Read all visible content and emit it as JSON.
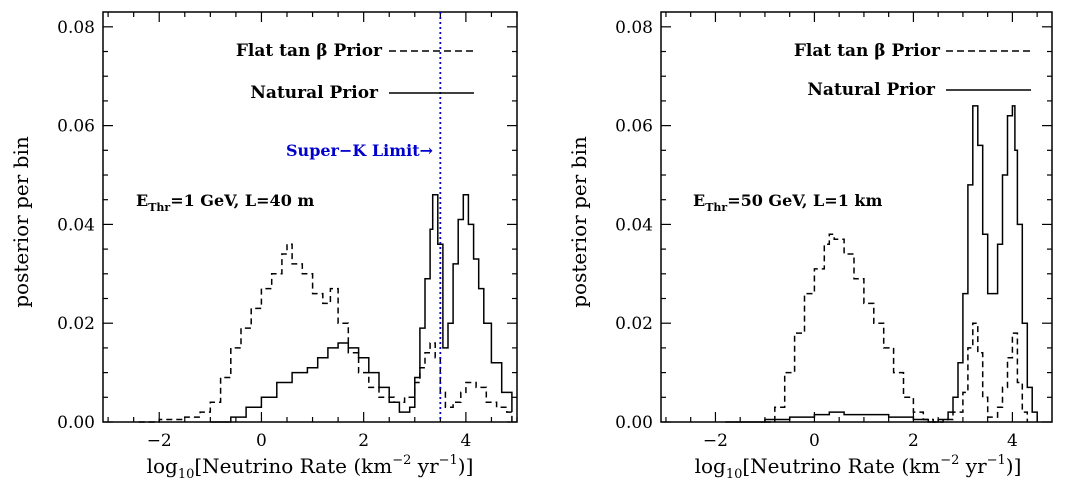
{
  "chart_data": [
    {
      "type": "line",
      "ylabel": "posterior per bin",
      "xlabel_main": "log",
      "xlabel_sub": "10",
      "xlabel_rest": "[Neutrino Rate (km",
      "xlabel_exp1": "−2",
      "xlabel_mid": " yr",
      "xlabel_exp2": "−1",
      "xlabel_end": ")]",
      "xlim": [
        -3.1,
        5.0
      ],
      "ylim": [
        0,
        0.083
      ],
      "xticks": [
        -2,
        0,
        2,
        4
      ],
      "xtick_labels": [
        "−2",
        "0",
        "2",
        "4"
      ],
      "yticks": [
        0,
        0.02,
        0.04,
        0.06,
        0.08
      ],
      "ytick_labels": [
        "0.00",
        "0.02",
        "0.04",
        "0.06",
        "0.08"
      ],
      "annotation": {
        "main": "E",
        "sub": "Thr",
        "rest": "=1 GeV, L=40 m"
      },
      "limit_line": {
        "label": "Super−K Limit→",
        "x": 3.5,
        "color": "#0000cc"
      },
      "series": [
        {
          "name": "Flat tan β Prior",
          "style": "dashed",
          "x": [
            -2.4,
            -2.0,
            -1.5,
            -1.2,
            -1.0,
            -0.8,
            -0.6,
            -0.4,
            -0.2,
            0.0,
            0.2,
            0.4,
            0.5,
            0.6,
            0.8,
            1.0,
            1.2,
            1.35,
            1.5,
            1.7,
            1.9,
            2.1,
            2.3,
            2.6,
            2.8,
            3.0,
            3.1,
            3.2,
            3.3,
            3.4,
            3.5,
            3.6,
            3.75,
            3.9,
            4.0,
            4.2,
            4.4,
            4.6,
            4.8,
            4.9
          ],
          "values": [
            0.0,
            0.0005,
            0.001,
            0.002,
            0.004,
            0.009,
            0.015,
            0.019,
            0.023,
            0.027,
            0.03,
            0.034,
            0.036,
            0.032,
            0.03,
            0.026,
            0.024,
            0.027,
            0.02,
            0.014,
            0.01,
            0.007,
            0.005,
            0.004,
            0.005,
            0.008,
            0.011,
            0.014,
            0.016,
            0.013,
            0.006,
            0.003,
            0.004,
            0.006,
            0.008,
            0.007,
            0.004,
            0.003,
            0.002,
            0.0
          ]
        },
        {
          "name": "Natural Prior",
          "style": "solid",
          "x": [
            -1.0,
            -0.6,
            -0.3,
            0.0,
            0.3,
            0.6,
            0.9,
            1.1,
            1.3,
            1.5,
            1.7,
            1.9,
            2.1,
            2.3,
            2.5,
            2.7,
            2.9,
            3.0,
            3.1,
            3.2,
            3.3,
            3.35,
            3.45,
            3.55,
            3.65,
            3.75,
            3.85,
            3.95,
            4.05,
            4.15,
            4.25,
            4.35,
            4.5,
            4.7,
            4.9
          ],
          "values": [
            0.0,
            0.001,
            0.003,
            0.005,
            0.008,
            0.01,
            0.011,
            0.013,
            0.015,
            0.016,
            0.015,
            0.013,
            0.01,
            0.007,
            0.004,
            0.002,
            0.003,
            0.009,
            0.019,
            0.029,
            0.039,
            0.046,
            0.036,
            0.015,
            0.02,
            0.032,
            0.041,
            0.046,
            0.04,
            0.033,
            0.027,
            0.02,
            0.012,
            0.006,
            0.002
          ]
        }
      ]
    },
    {
      "type": "line",
      "ylabel": "posterior per bin",
      "xlabel_main": "log",
      "xlabel_sub": "10",
      "xlabel_rest": "[Neutrino Rate (km",
      "xlabel_exp1": "−2",
      "xlabel_mid": " yr",
      "xlabel_exp2": "−1",
      "xlabel_end": ")]",
      "xlim": [
        -3.1,
        4.8
      ],
      "ylim": [
        0,
        0.083
      ],
      "xticks": [
        -2,
        0,
        2,
        4
      ],
      "xtick_labels": [
        "−2",
        "0",
        "2",
        "4"
      ],
      "yticks": [
        0,
        0.02,
        0.04,
        0.06,
        0.08
      ],
      "ytick_labels": [
        "0.00",
        "0.02",
        "0.04",
        "0.06",
        "0.08"
      ],
      "annotation": {
        "main": "E",
        "sub": "Thr",
        "rest": "=50 GeV, L=1 km"
      },
      "series": [
        {
          "name": "Flat tan β Prior",
          "style": "dashed",
          "x": [
            -1.0,
            -0.8,
            -0.6,
            -0.4,
            -0.2,
            0.0,
            0.2,
            0.3,
            0.4,
            0.6,
            0.8,
            1.0,
            1.2,
            1.4,
            1.6,
            1.8,
            2.0,
            2.2,
            2.4,
            2.6,
            2.8,
            3.0,
            3.1,
            3.2,
            3.3,
            3.4,
            3.5,
            3.6,
            3.7,
            3.8,
            3.9,
            4.0,
            4.1,
            4.2,
            4.3
          ],
          "values": [
            0.0,
            0.003,
            0.01,
            0.018,
            0.026,
            0.031,
            0.036,
            0.038,
            0.037,
            0.034,
            0.029,
            0.024,
            0.02,
            0.015,
            0.01,
            0.005,
            0.002,
            0.0005,
            0.0,
            0.0005,
            0.002,
            0.006,
            0.015,
            0.02,
            0.014,
            0.005,
            0.001,
            0.001,
            0.003,
            0.007,
            0.013,
            0.018,
            0.008,
            0.002,
            0.0
          ]
        },
        {
          "name": "Natural Prior",
          "style": "solid",
          "x": [
            -1.8,
            -1.0,
            -0.5,
            0.0,
            0.3,
            0.6,
            1.0,
            1.5,
            2.0,
            2.3,
            2.5,
            2.7,
            2.8,
            2.9,
            3.0,
            3.1,
            3.2,
            3.3,
            3.4,
            3.5,
            3.6,
            3.7,
            3.8,
            3.9,
            4.0,
            4.05,
            4.1,
            4.2,
            4.3,
            4.4,
            4.5
          ],
          "values": [
            0.0,
            0.0005,
            0.001,
            0.0015,
            0.002,
            0.0015,
            0.0015,
            0.001,
            0.0005,
            0.0,
            0.0005,
            0.002,
            0.005,
            0.012,
            0.026,
            0.048,
            0.064,
            0.056,
            0.038,
            0.026,
            0.026,
            0.036,
            0.05,
            0.062,
            0.064,
            0.055,
            0.04,
            0.02,
            0.007,
            0.002,
            0.0
          ]
        }
      ]
    }
  ]
}
